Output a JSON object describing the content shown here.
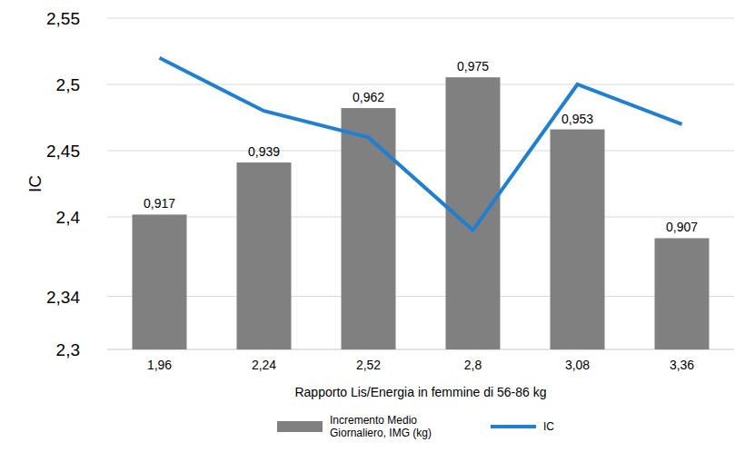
{
  "chart_data": {
    "type": "bar",
    "x_label": "Rapporto Lis/Energia in femmine di 56-86 kg",
    "y_label": "IC",
    "categories": [
      "1,96",
      "2,24",
      "2,52",
      "2,8",
      "3,08",
      "3,36"
    ],
    "series": [
      {
        "name": "Incremento Medio Giornaliero, IMG (kg)",
        "type": "bar",
        "color": "#808080",
        "axis": "y2",
        "values": [
          0.917,
          0.939,
          0.962,
          0.975,
          0.953,
          0.907
        ],
        "value_labels": [
          "0,917",
          "0,939",
          "0,962",
          "0,975",
          "0,953",
          "0,907"
        ]
      },
      {
        "name": "IC",
        "type": "line",
        "color": "#1f7fd2",
        "values": [
          2.52,
          2.48,
          2.46,
          2.39,
          2.5,
          2.47
        ]
      }
    ],
    "ylim": [
      2.3,
      2.55
    ],
    "yticks": [
      {
        "value": 2.3,
        "label": "2,3"
      },
      {
        "value": 2.34,
        "label": "2,34"
      },
      {
        "value": 2.4,
        "label": "2,4"
      },
      {
        "value": 2.45,
        "label": "2,45"
      },
      {
        "value": 2.5,
        "label": "2,5"
      },
      {
        "value": 2.55,
        "label": "2,55"
      }
    ],
    "y2lim": [
      0.86,
      1.0
    ],
    "grid": true,
    "data_labels": true,
    "legend": "bottom"
  }
}
